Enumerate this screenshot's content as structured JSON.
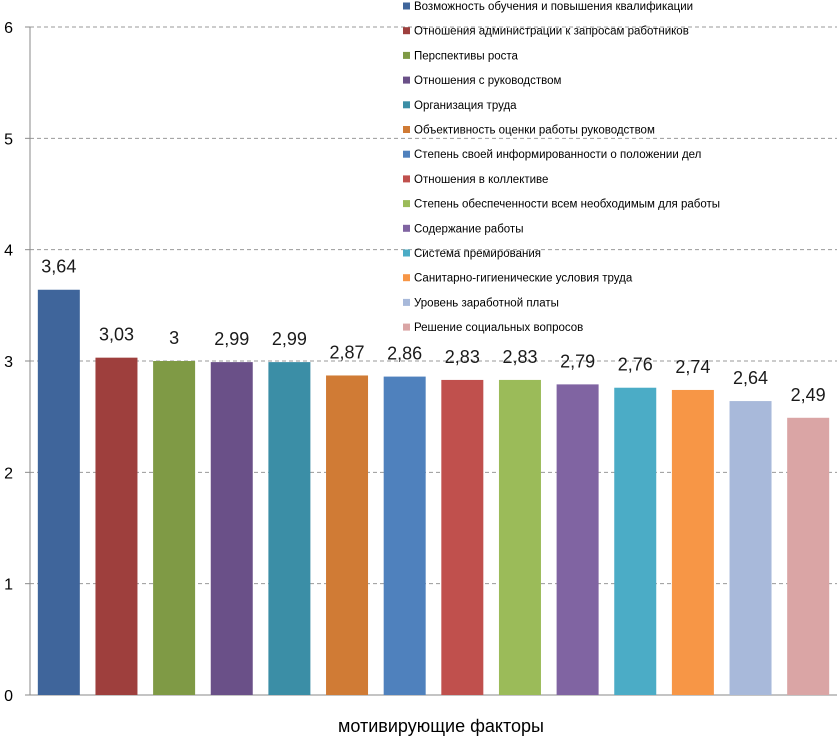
{
  "chart_data": {
    "type": "bar",
    "xlabel": "мотивирующие факторы",
    "ylabel": "",
    "ylim": [
      0,
      6
    ],
    "yticks": [
      "0",
      "1",
      "2",
      "3",
      "4",
      "5",
      "6"
    ],
    "grid": true,
    "legend_position": "top-right",
    "categories": [
      "Возможность обучения и повышения квалификации",
      "Отношения администрации к запросам работников",
      "Перспективы роста",
      "Отношения с руководством",
      "Организация труда",
      "Объективность оценки работы руководством",
      "Степень своей информированности о положении дел",
      "Отношения в коллективе",
      "Степень обеспеченности всем необходимым для работы",
      "Содержание работы",
      "Система премирования",
      "Санитарно-гигиенические условия труда",
      "Уровень заработной платы",
      "Решение социальных вопросов"
    ],
    "values": [
      3.64,
      3.03,
      3,
      2.99,
      2.99,
      2.87,
      2.86,
      2.83,
      2.83,
      2.79,
      2.76,
      2.74,
      2.64,
      2.49
    ],
    "value_labels": [
      "3,64",
      "3,03",
      "3",
      "2,99",
      "2,99",
      "2,87",
      "2,86",
      "2,83",
      "2,83",
      "2,79",
      "2,76",
      "2,74",
      "2,64",
      "2,49"
    ],
    "colors": [
      "#3f659b",
      "#9e3f3d",
      "#7f9a45",
      "#6a5088",
      "#3b8ea6",
      "#d07b35",
      "#4f81bd",
      "#c0504d",
      "#9bbb59",
      "#8064a2",
      "#4bacc6",
      "#f79646",
      "#a8b9da",
      "#daa5a5"
    ]
  }
}
